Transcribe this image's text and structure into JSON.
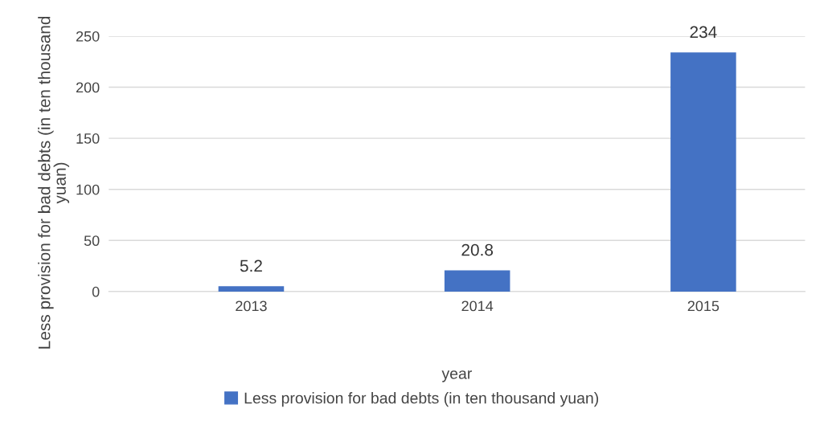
{
  "chart_data": {
    "type": "bar",
    "categories": [
      "2013",
      "2014",
      "2015"
    ],
    "series": [
      {
        "name": "Less provision for bad debts (in ten thousand yuan)",
        "color": "#4472c4",
        "values": [
          5.2,
          20.8,
          234
        ]
      }
    ],
    "xlabel": "year",
    "ylabel": "Less provision for bad debts (in ten thousand yuan)",
    "ylim": [
      0,
      250
    ],
    "yticks": [
      0,
      50,
      100,
      150,
      200,
      250
    ],
    "grid": "y",
    "legend": "bottom",
    "data_labels": true
  }
}
